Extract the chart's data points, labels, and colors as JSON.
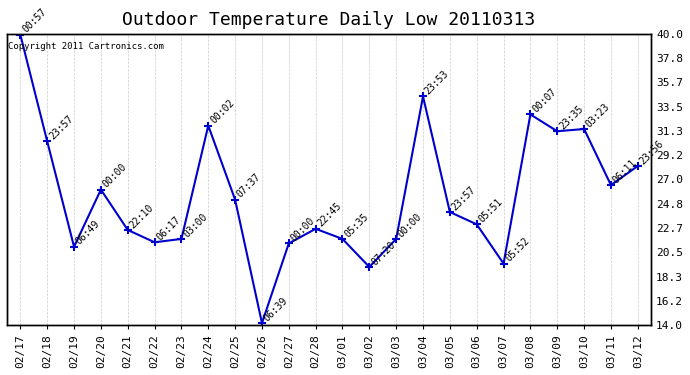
{
  "title": "Outdoor Temperature Daily Low 20110313",
  "copyright_text": "Copyright 2011 Cartronics.com",
  "dates": [
    "02/17",
    "02/18",
    "02/19",
    "02/20",
    "02/21",
    "02/22",
    "02/23",
    "02/24",
    "02/25",
    "02/26",
    "02/27",
    "02/28",
    "03/01",
    "03/02",
    "03/03",
    "03/04",
    "03/05",
    "03/06",
    "03/07",
    "03/08",
    "03/09",
    "03/10",
    "03/11",
    "03/12"
  ],
  "values": [
    39.9,
    30.4,
    21.0,
    26.1,
    22.5,
    21.4,
    21.7,
    31.8,
    25.2,
    14.2,
    21.3,
    22.6,
    21.7,
    19.2,
    21.7,
    34.4,
    24.1,
    23.0,
    19.5,
    32.8,
    31.3,
    31.5,
    26.5,
    28.2
  ],
  "time_labels": [
    "00:57",
    "23:57",
    "06:49",
    "00:00",
    "22:10",
    "06:17",
    "03:00",
    "00:02",
    "07:37",
    "06:39",
    "00:00",
    "22:45",
    "05:35",
    "07:20",
    "00:00",
    "23:53",
    "23:57",
    "05:51",
    "05:52",
    "00:07",
    "23:35",
    "03:23",
    "06:11",
    "23:56"
  ],
  "ylim": [
    14.0,
    40.0
  ],
  "yticks": [
    14.0,
    16.2,
    18.3,
    20.5,
    22.7,
    24.8,
    27.0,
    29.2,
    31.3,
    33.5,
    35.7,
    37.8,
    40.0
  ],
  "line_color": "#0000cc",
  "marker_color": "#0000cc",
  "bg_color": "#ffffff",
  "grid_color": "#cccccc",
  "title_fontsize": 13,
  "label_fontsize": 8,
  "annotation_fontsize": 7
}
